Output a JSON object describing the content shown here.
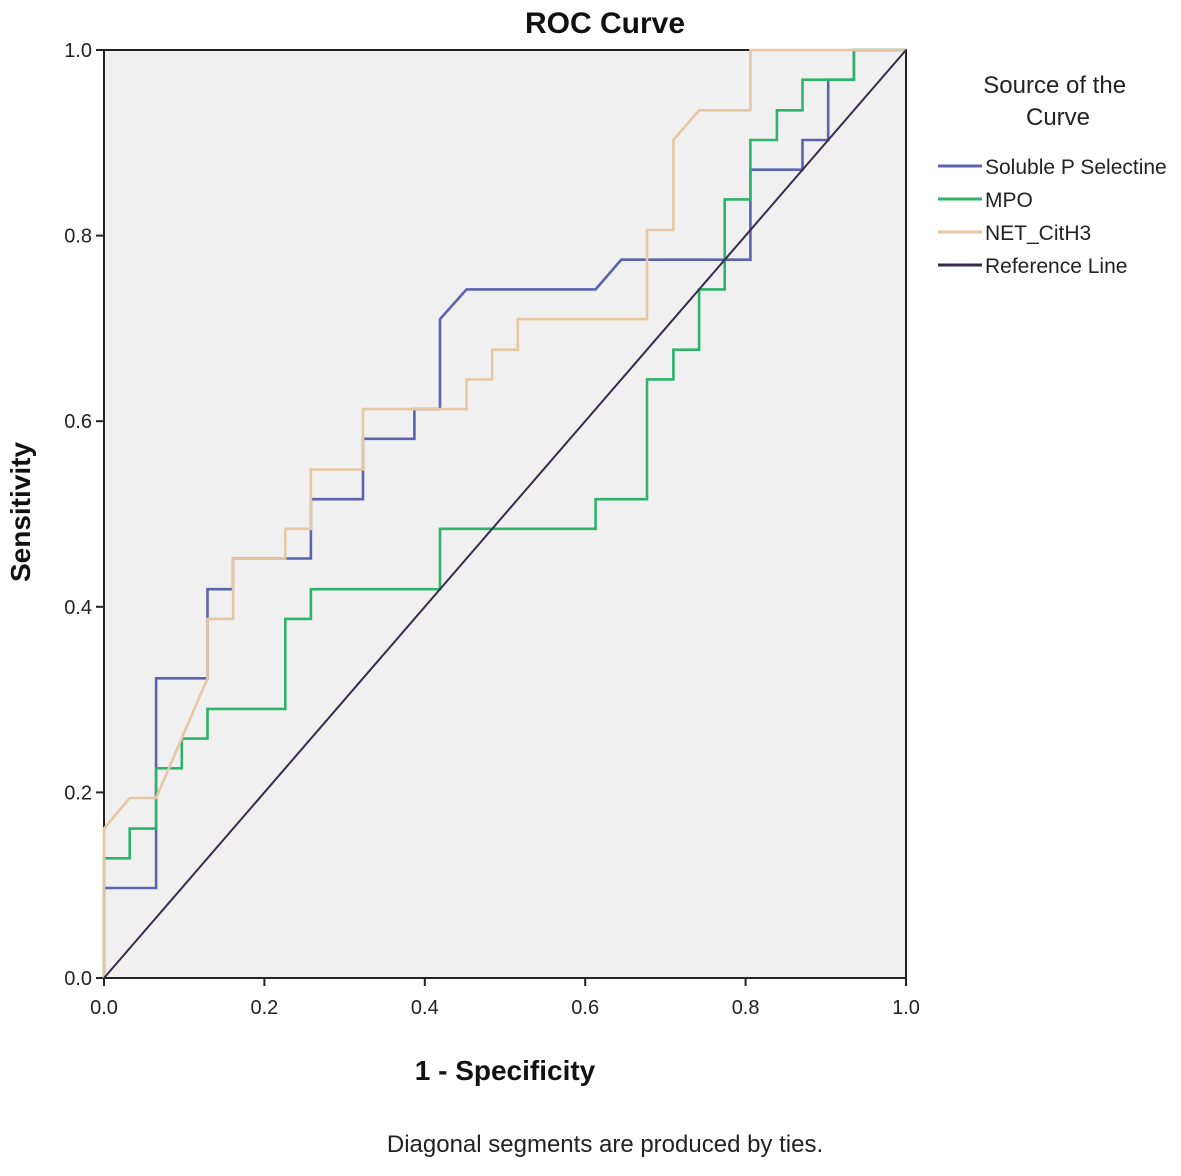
{
  "chart_data": {
    "type": "line",
    "title": "ROC Curve",
    "xlabel": "1 - Specificity",
    "ylabel": "Sensitivity",
    "xlim": [
      0,
      1
    ],
    "ylim": [
      0,
      1
    ],
    "xticks": [
      "0.0",
      "0.2",
      "0.4",
      "0.6",
      "0.8",
      "1.0"
    ],
    "yticks": [
      "0.0",
      "0.2",
      "0.4",
      "0.6",
      "0.8",
      "1.0"
    ],
    "grid": false,
    "legend_title": "Source of the Curve",
    "legend_position": "right",
    "footnote": "Diagonal segments are produced by ties.",
    "series": [
      {
        "name": "Soluble P Selectine",
        "color": "#5a63ad",
        "x": [
          0,
          0,
          0.065,
          0.065,
          0.129,
          0.129,
          0.161,
          0.161,
          0.226,
          0.226,
          0.258,
          0.258,
          0.323,
          0.323,
          0.387,
          0.387,
          0.419,
          0.419,
          0.452,
          0.613,
          0.645,
          0.806,
          0.806,
          0.871,
          0.871,
          0.903,
          0.903,
          0.935,
          0.935,
          1.0
        ],
        "y": [
          0,
          0.097,
          0.097,
          0.323,
          0.323,
          0.419,
          0.419,
          0.452,
          0.452,
          0.452,
          0.452,
          0.516,
          0.516,
          0.581,
          0.581,
          0.613,
          0.613,
          0.71,
          0.742,
          0.742,
          0.774,
          0.774,
          0.871,
          0.871,
          0.903,
          0.903,
          0.968,
          0.968,
          1.0,
          1.0
        ]
      },
      {
        "name": "MPO",
        "color": "#2db36a",
        "x": [
          0,
          0,
          0.032,
          0.032,
          0.065,
          0.065,
          0.097,
          0.097,
          0.129,
          0.129,
          0.226,
          0.226,
          0.258,
          0.258,
          0.419,
          0.419,
          0.613,
          0.613,
          0.677,
          0.677,
          0.71,
          0.71,
          0.742,
          0.742,
          0.774,
          0.774,
          0.806,
          0.806,
          0.839,
          0.839,
          0.871,
          0.871,
          0.935,
          0.935,
          1.0
        ],
        "y": [
          0,
          0.129,
          0.129,
          0.161,
          0.161,
          0.226,
          0.226,
          0.258,
          0.258,
          0.29,
          0.29,
          0.387,
          0.387,
          0.419,
          0.419,
          0.484,
          0.484,
          0.516,
          0.516,
          0.645,
          0.645,
          0.677,
          0.677,
          0.742,
          0.742,
          0.839,
          0.839,
          0.903,
          0.903,
          0.935,
          0.935,
          0.968,
          0.968,
          1.0,
          1.0
        ]
      },
      {
        "name": "NET_CitH3",
        "color": "#e6c7a3",
        "x": [
          0,
          0,
          0.032,
          0.065,
          0.129,
          0.129,
          0.161,
          0.161,
          0.226,
          0.226,
          0.258,
          0.258,
          0.323,
          0.323,
          0.419,
          0.419,
          0.452,
          0.452,
          0.484,
          0.484,
          0.516,
          0.516,
          0.548,
          0.677,
          0.677,
          0.71,
          0.71,
          0.742,
          0.806,
          0.806,
          1.0
        ],
        "y": [
          0,
          0.161,
          0.194,
          0.194,
          0.323,
          0.387,
          0.387,
          0.452,
          0.452,
          0.484,
          0.484,
          0.548,
          0.548,
          0.613,
          0.613,
          0.613,
          0.613,
          0.645,
          0.645,
          0.677,
          0.677,
          0.71,
          0.71,
          0.71,
          0.806,
          0.806,
          0.903,
          0.935,
          0.935,
          1.0,
          1.0
        ]
      },
      {
        "name": "Reference Line",
        "color": "#3a2a4f",
        "x": [
          0,
          1
        ],
        "y": [
          0,
          1
        ]
      }
    ]
  }
}
